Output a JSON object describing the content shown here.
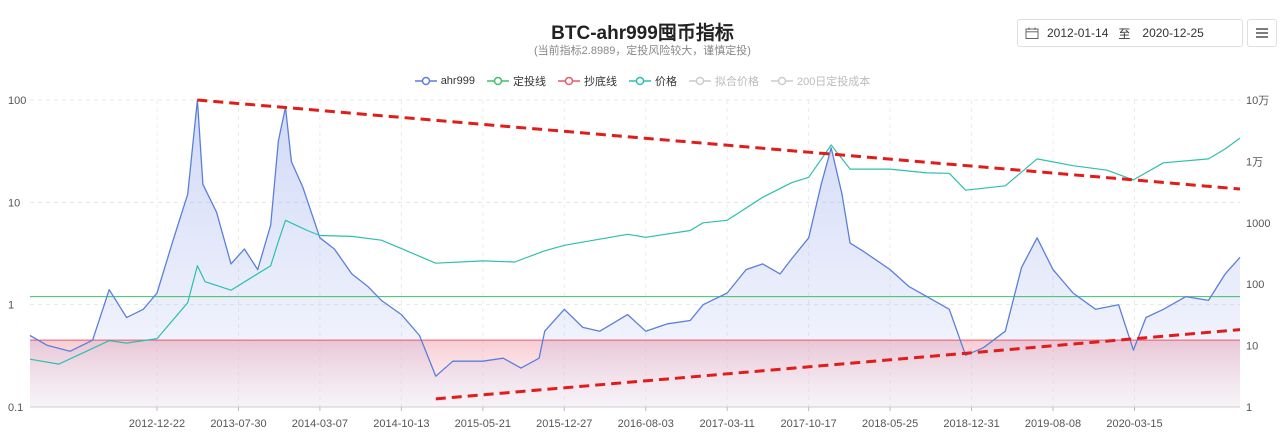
{
  "title": "BTC-ahr999囤币指标",
  "subtitle": "(当前指标2.8989，定投风险较大，谨慎定投)",
  "date_range": {
    "start": "2012-01-14",
    "separator": "至",
    "end": "2020-12-25"
  },
  "icons": {
    "calendar": "calendar-icon",
    "menu": "menu-icon"
  },
  "legend": [
    {
      "label": "ahr999",
      "color": "#5b7fd9",
      "active": true
    },
    {
      "label": "定投线",
      "color": "#3fbf6a",
      "active": true
    },
    {
      "label": "抄底线",
      "color": "#e45a6c",
      "active": true
    },
    {
      "label": "价格",
      "color": "#2ebfae",
      "active": true
    },
    {
      "label": "拟合价格",
      "color": "#cccccc",
      "active": false
    },
    {
      "label": "200日定投成本",
      "color": "#cccccc",
      "active": false
    }
  ],
  "chart_data": {
    "type": "line",
    "x_ticks": [
      "2012-12-22",
      "2013-07-30",
      "2014-03-07",
      "2014-10-13",
      "2015-05-21",
      "2015-12-27",
      "2016-08-03",
      "2017-03-11",
      "2017-10-17",
      "2018-05-25",
      "2018-12-31",
      "2019-08-08",
      "2020-03-15"
    ],
    "y_left": {
      "scale": "log",
      "ticks": [
        "100",
        "10",
        "1",
        "0.1"
      ],
      "range": [
        0.1,
        100
      ]
    },
    "y_right": {
      "scale": "log",
      "ticks": [
        "10万",
        "1万",
        "1000",
        "100",
        "10",
        "1"
      ],
      "range": [
        1,
        100000
      ]
    },
    "reference_lines": [
      {
        "name": "定投线",
        "value": 1.2,
        "color": "#3fbf6a"
      },
      {
        "name": "抄底线",
        "value": 0.45,
        "color": "#e45a6c"
      }
    ],
    "series": [
      {
        "name": "ahr999",
        "color": "#5b7fd9",
        "x": [
          "2012-01-14",
          "2012-03-01",
          "2012-05-01",
          "2012-07-01",
          "2012-08-15",
          "2012-10-01",
          "2012-11-15",
          "2012-12-22",
          "2013-02-01",
          "2013-03-15",
          "2013-04-10",
          "2013-04-25",
          "2013-06-01",
          "2013-07-10",
          "2013-08-15",
          "2013-09-20",
          "2013-10-25",
          "2013-11-15",
          "2013-12-04",
          "2013-12-20",
          "2014-01-20",
          "2014-03-07",
          "2014-04-15",
          "2014-06-01",
          "2014-07-15",
          "2014-08-20",
          "2014-10-13",
          "2014-12-01",
          "2015-01-14",
          "2015-03-01",
          "2015-05-21",
          "2015-07-15",
          "2015-09-01",
          "2015-10-20",
          "2015-11-04",
          "2015-12-27",
          "2016-02-15",
          "2016-04-01",
          "2016-06-15",
          "2016-08-03",
          "2016-10-01",
          "2016-12-01",
          "2017-01-05",
          "2017-03-11",
          "2017-05-01",
          "2017-06-15",
          "2017-08-01",
          "2017-09-01",
          "2017-10-17",
          "2017-11-20",
          "2017-12-17",
          "2018-01-15",
          "2018-02-06",
          "2018-03-15",
          "2018-05-25",
          "2018-07-15",
          "2018-09-01",
          "2018-11-01",
          "2018-12-15",
          "2019-02-01",
          "2019-04-01",
          "2019-05-15",
          "2019-06-26",
          "2019-08-08",
          "2019-10-01",
          "2019-12-01",
          "2020-02-01",
          "2020-03-12",
          "2020-04-15",
          "2020-06-01",
          "2020-08-01",
          "2020-10-01",
          "2020-11-15",
          "2020-12-25"
        ],
        "values": [
          0.5,
          0.4,
          0.35,
          0.45,
          1.4,
          0.75,
          0.9,
          1.3,
          4,
          12,
          100,
          15,
          8,
          2.5,
          3.5,
          2.2,
          6,
          40,
          85,
          25,
          14,
          4.5,
          3.5,
          2,
          1.5,
          1.1,
          0.8,
          0.5,
          0.2,
          0.28,
          0.28,
          0.3,
          0.24,
          0.3,
          0.55,
          0.9,
          0.6,
          0.55,
          0.8,
          0.55,
          0.65,
          0.7,
          1.0,
          1.3,
          2.2,
          2.5,
          2.0,
          2.8,
          4.5,
          15,
          34,
          12,
          4,
          3.3,
          2.2,
          1.5,
          1.2,
          0.9,
          0.32,
          0.38,
          0.55,
          2.3,
          4.5,
          2.2,
          1.3,
          0.9,
          1.0,
          0.36,
          0.75,
          0.9,
          1.2,
          1.1,
          2.0,
          2.9
        ]
      },
      {
        "name": "价格",
        "color": "#2ebfae",
        "x": [
          "2012-01-14",
          "2012-04-01",
          "2012-08-15",
          "2012-10-01",
          "2012-12-22",
          "2013-03-15",
          "2013-04-10",
          "2013-05-01",
          "2013-07-10",
          "2013-10-25",
          "2013-11-15",
          "2013-12-04",
          "2014-02-01",
          "2014-03-07",
          "2014-06-01",
          "2014-08-20",
          "2014-10-13",
          "2015-01-14",
          "2015-05-21",
          "2015-08-15",
          "2015-11-04",
          "2015-12-27",
          "2016-06-15",
          "2016-08-03",
          "2016-12-01",
          "2017-01-05",
          "2017-03-11",
          "2017-06-15",
          "2017-09-01",
          "2017-10-17",
          "2017-12-17",
          "2018-02-06",
          "2018-05-25",
          "2018-09-01",
          "2018-11-01",
          "2018-12-15",
          "2019-04-01",
          "2019-06-26",
          "2019-10-01",
          "2020-01-01",
          "2020-03-12",
          "2020-06-01",
          "2020-10-01",
          "2020-11-15",
          "2020-12-25"
        ],
        "values": [
          6,
          5,
          12,
          11,
          13,
          50,
          200,
          110,
          80,
          200,
          500,
          1100,
          750,
          620,
          600,
          520,
          380,
          220,
          240,
          230,
          350,
          430,
          650,
          580,
          750,
          1000,
          1100,
          2600,
          4500,
          5500,
          18500,
          7500,
          7500,
          6500,
          6400,
          3400,
          4000,
          11000,
          8500,
          7200,
          5000,
          9500,
          11000,
          16000,
          24000
        ]
      }
    ],
    "annotations": [
      {
        "type": "trendline",
        "style": "red-dashed",
        "from": [
          "2013-04-10",
          100
        ],
        "to": [
          "2020-12-25",
          13.5
        ]
      },
      {
        "type": "trendline",
        "style": "red-dashed",
        "from": [
          "2015-01-14",
          0.12
        ],
        "to": [
          "2020-12-25",
          0.57
        ]
      }
    ]
  }
}
